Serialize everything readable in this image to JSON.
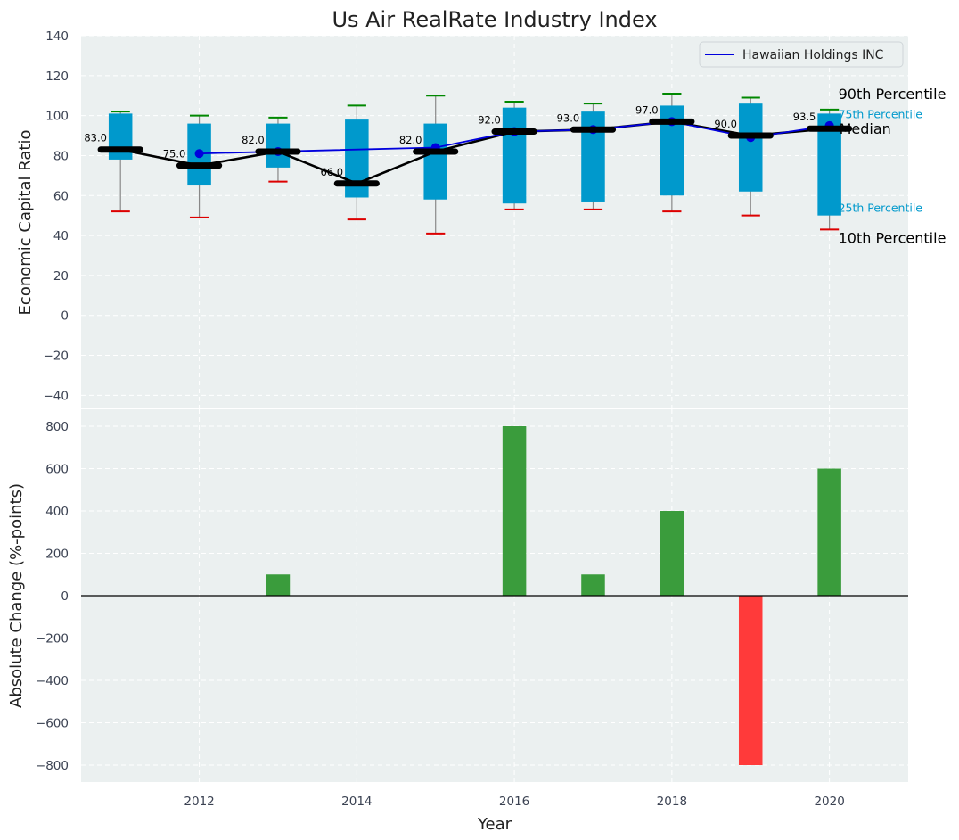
{
  "chart_data": [
    {
      "type": "box",
      "title": "Us Air RealRate Industry Index",
      "ylabel": "Economic Capital Ratio",
      "xlim": [
        2010.5,
        2021
      ],
      "ylim": [
        -47,
        140
      ],
      "y_ticks": [
        -40,
        -20,
        0,
        20,
        40,
        60,
        80,
        100,
        120,
        140
      ],
      "grid": true,
      "legend_position": "top-right",
      "years": [
        2011,
        2012,
        2013,
        2014,
        2015,
        2016,
        2017,
        2018,
        2019,
        2020
      ],
      "boxes": [
        {
          "p10": 52,
          "p25": 78,
          "median": 83,
          "p75": 101,
          "p90": 102
        },
        {
          "p10": 49,
          "p25": 65,
          "median": 75,
          "p75": 96,
          "p90": 100
        },
        {
          "p10": 67,
          "p25": 74,
          "median": 82,
          "p75": 96,
          "p90": 99
        },
        {
          "p10": 48,
          "p25": 59,
          "median": 66,
          "p75": 98,
          "p90": 105
        },
        {
          "p10": 41,
          "p25": 58,
          "median": 82,
          "p75": 96,
          "p90": 110
        },
        {
          "p10": 53,
          "p25": 56,
          "median": 92,
          "p75": 104,
          "p90": 107
        },
        {
          "p10": 53,
          "p25": 57,
          "median": 93,
          "p75": 102,
          "p90": 106
        },
        {
          "p10": 52,
          "p25": 60,
          "median": 97,
          "p75": 105,
          "p90": 111
        },
        {
          "p10": 50,
          "p25": 62,
          "median": 90,
          "p75": 106,
          "p90": 109
        },
        {
          "p10": 43,
          "p25": 50,
          "median": 93.5,
          "p75": 101,
          "p90": 103
        }
      ],
      "median_labels": [
        "83.0",
        "75.0",
        "82.0",
        "66.0",
        "82.0",
        "92.0",
        "93.0",
        "97.0",
        "90.0",
        "93.5"
      ],
      "series": [
        {
          "name": "Hawaiian Holdings INC",
          "color": "#0000dd",
          "x": [
            2012,
            2013,
            2015,
            2016,
            2017,
            2018,
            2019,
            2020
          ],
          "values": [
            81,
            82,
            84,
            92,
            93,
            97,
            89,
            95
          ]
        }
      ],
      "annotations": {
        "p90": "90th Percentile",
        "p75": "75th Percentile",
        "median": "Median",
        "p25": "25th Percentile",
        "p10": "10th Percentile"
      },
      "colors": {
        "box": "#0099cc",
        "median_line": "#000000",
        "whisker_top": "#008800",
        "whisker_bottom": "#dd0000",
        "background": "#ebf0f0"
      }
    },
    {
      "type": "bar",
      "xlabel": "Year",
      "ylabel": "Absolute Change (%-points)",
      "ylim": [
        -880,
        880
      ],
      "y_ticks": [
        -800,
        -600,
        -400,
        -200,
        0,
        200,
        400,
        600,
        800
      ],
      "x_ticks": [
        2012,
        2014,
        2016,
        2018,
        2020
      ],
      "grid": true,
      "categories": [
        2013,
        2016,
        2017,
        2018,
        2019,
        2020
      ],
      "values": [
        100,
        800,
        100,
        400,
        -800,
        600
      ],
      "colors": {
        "positive": "#3a9c3c",
        "negative": "#ff3a3a"
      }
    }
  ]
}
